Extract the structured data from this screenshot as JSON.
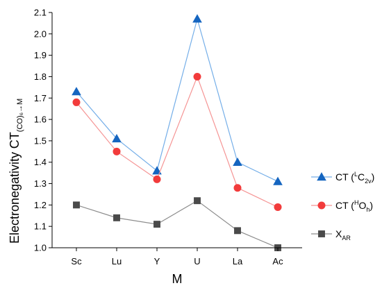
{
  "chart_data": {
    "type": "line",
    "categories": [
      "Sc",
      "Lu",
      "Y",
      "U",
      "La",
      "Ac"
    ],
    "xlabel": "M",
    "ylabel_parts": {
      "main": "CT",
      "sub": "(CO)₆→M"
    },
    "ylabel2": "Electronegativity",
    "ylim": [
      1.0,
      2.1
    ],
    "yticks": [
      "1.0",
      "1.1",
      "1.2",
      "1.3",
      "1.4",
      "1.5",
      "1.6",
      "1.7",
      "1.8",
      "1.9",
      "2.0",
      "2.1"
    ],
    "grid": false,
    "legend_position": "right",
    "series": [
      {
        "key": "ct-c2v",
        "label_parts": {
          "pre": "CT (",
          "sup": "L",
          "base": "C",
          "sub": "2v",
          "post": ")"
        },
        "marker": "triangle",
        "marker_color": "#1565c0",
        "line_color": "#74aee8",
        "values": [
          1.73,
          1.51,
          1.36,
          2.07,
          1.4,
          1.31
        ]
      },
      {
        "key": "ct-oh",
        "label_parts": {
          "pre": "CT (",
          "sup": "H",
          "base": "O",
          "sub": "h",
          "post": ")"
        },
        "marker": "circle",
        "marker_color": "#f23b3b",
        "line_color": "#f59494",
        "values": [
          1.68,
          1.45,
          1.32,
          1.8,
          1.28,
          1.19
        ]
      },
      {
        "key": "xar",
        "label_parts": {
          "pre": "",
          "sup": "",
          "base": "X",
          "sub": "AR",
          "post": ""
        },
        "marker": "square",
        "marker_color": "#4a4a4a",
        "line_color": "#8c8c8c",
        "values": [
          1.2,
          1.14,
          1.11,
          1.22,
          1.08,
          1.0
        ]
      }
    ]
  }
}
